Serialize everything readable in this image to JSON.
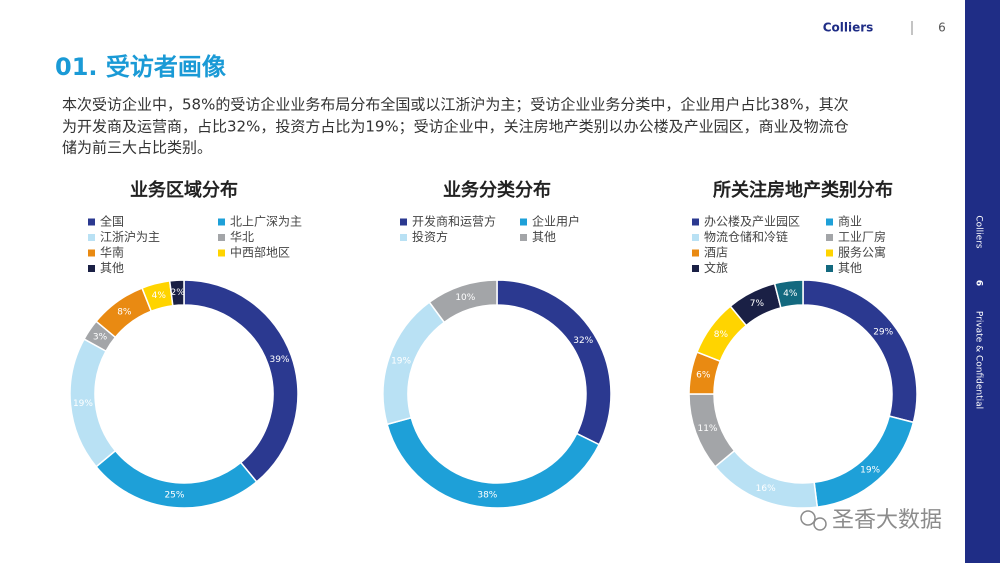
{
  "brand": "Colliers",
  "page_number": "6",
  "side_text": [
    "Colliers",
    "6",
    "Private & Confidential"
  ],
  "watermark": "圣香大数据",
  "title": "01. 受访者画像",
  "paragraph": [
    "本次受访企业中，58%的受访企业业务布局分布全国或以江浙沪为主；受访企业业务分类中，企业用户占比38%，其次",
    "为开发商及运营商，占比32%，投资方占比为19%；受访企业中，关注房地产类别以办公楼及产业园区，商业及物流仓",
    "储为前三大占比类别。"
  ],
  "chart_data": [
    {
      "type": "pie",
      "title": "业务区域分布",
      "categories": [
        "全国",
        "北上广深为主",
        "江浙沪为主",
        "华北",
        "华南",
        "中西部地区",
        "其他"
      ],
      "values": [
        39,
        25,
        19,
        3,
        8,
        4,
        2
      ],
      "value_labels": [
        "39%",
        "25%",
        "19%",
        "3%",
        "8%",
        "4%",
        "2%"
      ],
      "colors": [
        "#2b3990",
        "#1ea0d8",
        "#b9e1f4",
        "#a3a5a8",
        "#e98a12",
        "#ffd400",
        "#1a2045"
      ]
    },
    {
      "type": "pie",
      "title": "业务分类分布",
      "categories": [
        "开发商和运营方",
        "企业用户",
        "投资方",
        "其他"
      ],
      "values": [
        32,
        38,
        19,
        10
      ],
      "value_labels": [
        "32%",
        "38%",
        "19%",
        "10%"
      ],
      "colors": [
        "#2b3990",
        "#1ea0d8",
        "#b9e1f4",
        "#a3a5a8"
      ]
    },
    {
      "type": "pie",
      "title": "所关注房地产类别分布",
      "categories": [
        "办公楼及产业园区",
        "商业",
        "物流仓储和冷链",
        "工业厂房",
        "酒店",
        "服务公寓",
        "文旅",
        "其他"
      ],
      "values": [
        29,
        19,
        16,
        11,
        6,
        8,
        7,
        4
      ],
      "value_labels": [
        "29%",
        "19%",
        "16%",
        "11%",
        "6%",
        "8%",
        "7%",
        "4%"
      ],
      "colors": [
        "#2b3990",
        "#1ea0d8",
        "#b9e1f4",
        "#a3a5a8",
        "#e98a12",
        "#ffd400",
        "#1a2045",
        "#13697f"
      ]
    }
  ]
}
